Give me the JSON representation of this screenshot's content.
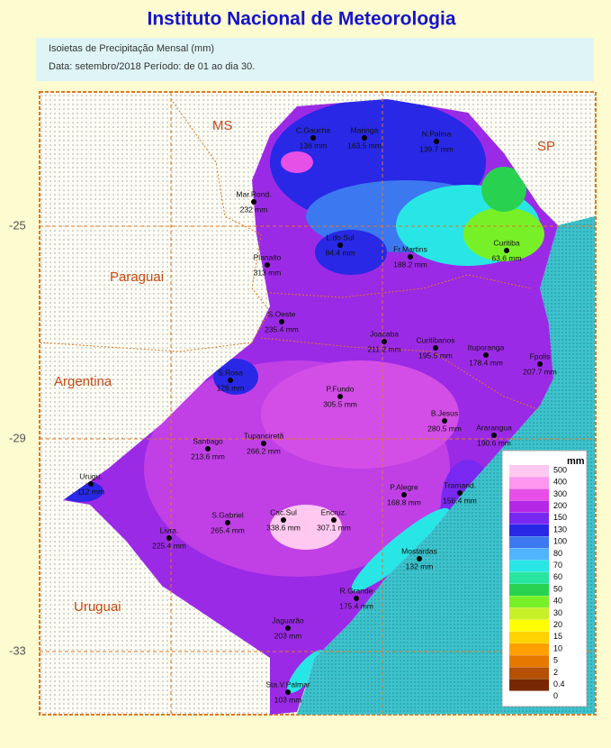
{
  "header": {
    "title": "Instituto Nacional de Meteorologia",
    "lines": [
      "Isoietas de Precipitação Mensal (mm)",
      "Data: setembro/2018  Período: de 01 ao dia 30."
    ]
  },
  "regions": [
    "MS",
    "SP",
    "Paraguai",
    "Argentina",
    "Uruguai"
  ],
  "latitudes": [
    "-25",
    "-29",
    "-33"
  ],
  "stations": [
    {
      "name": "C.Gaucha",
      "value": "136 mm"
    },
    {
      "name": "Maringa",
      "value": "163.5 mm"
    },
    {
      "name": "N.Palma",
      "value": "139.7 mm"
    },
    {
      "name": "Mar.Rond.",
      "value": "232 mm"
    },
    {
      "name": "L.do Sul",
      "value": "84.4 mm"
    },
    {
      "name": "Fr.Martins",
      "value": "188.2 mm"
    },
    {
      "name": "Curitiba",
      "value": "63.6 mm"
    },
    {
      "name": "Planalto",
      "value": "313 mm"
    },
    {
      "name": "S.Oeste",
      "value": "235.4 mm"
    },
    {
      "name": "Joacaba",
      "value": "211.2 mm"
    },
    {
      "name": "Curitibanos",
      "value": "195.5 mm"
    },
    {
      "name": "Ituporanga",
      "value": "178.4 mm"
    },
    {
      "name": "Fpolis",
      "value": "207.7 mm"
    },
    {
      "name": "S.Rosa",
      "value": "126 mm"
    },
    {
      "name": "P.Fundo",
      "value": "305.5 mm"
    },
    {
      "name": "B.Jesus",
      "value": "280.5 mm"
    },
    {
      "name": "Ararangua",
      "value": "190.6 mm"
    },
    {
      "name": "Tupanciretã",
      "value": "266.2 mm"
    },
    {
      "name": "Santiago",
      "value": "213.6 mm"
    },
    {
      "name": "Urugu.",
      "value": "112 mm"
    },
    {
      "name": "P.Alegre",
      "value": "168.8 mm"
    },
    {
      "name": "Tramand.",
      "value": "156.4 mm"
    },
    {
      "name": "S.Gabriel",
      "value": "265.4 mm"
    },
    {
      "name": "Cac.Sul",
      "value": "338.6 mm"
    },
    {
      "name": "Encruz.",
      "value": "307.1 mm"
    },
    {
      "name": "Livra.",
      "value": "225.4 mm"
    },
    {
      "name": "Mostardas",
      "value": "132 mm"
    },
    {
      "name": "R.Grande",
      "value": "175.4 mm"
    },
    {
      "name": "Jaguarão",
      "value": "203 mm"
    },
    {
      "name": "Sta.V.Palmar",
      "value": "103 mm"
    }
  ],
  "legend": {
    "unit": "mm",
    "items": [
      {
        "label": "500",
        "color": "#ffc8f0"
      },
      {
        "label": "400",
        "color": "#ff96f0"
      },
      {
        "label": "300",
        "color": "#e650e6"
      },
      {
        "label": "200",
        "color": "#b428e6"
      },
      {
        "label": "150",
        "color": "#7828f0"
      },
      {
        "label": "130",
        "color": "#2828e6"
      },
      {
        "label": "100",
        "color": "#3c78f0"
      },
      {
        "label": "80",
        "color": "#50b4ff"
      },
      {
        "label": "70",
        "color": "#28e6e6"
      },
      {
        "label": "60",
        "color": "#28e6a0"
      },
      {
        "label": "50",
        "color": "#28d250"
      },
      {
        "label": "40",
        "color": "#78f028"
      },
      {
        "label": "30",
        "color": "#c8f028"
      },
      {
        "label": "20",
        "color": "#ffff00"
      },
      {
        "label": "15",
        "color": "#ffd200"
      },
      {
        "label": "10",
        "color": "#ffa000"
      },
      {
        "label": "5",
        "color": "#e67800"
      },
      {
        "label": "2",
        "color": "#b45000"
      },
      {
        "label": "0.4",
        "color": "#782800"
      },
      {
        "label": "0",
        "color": "#ffffff"
      }
    ]
  }
}
